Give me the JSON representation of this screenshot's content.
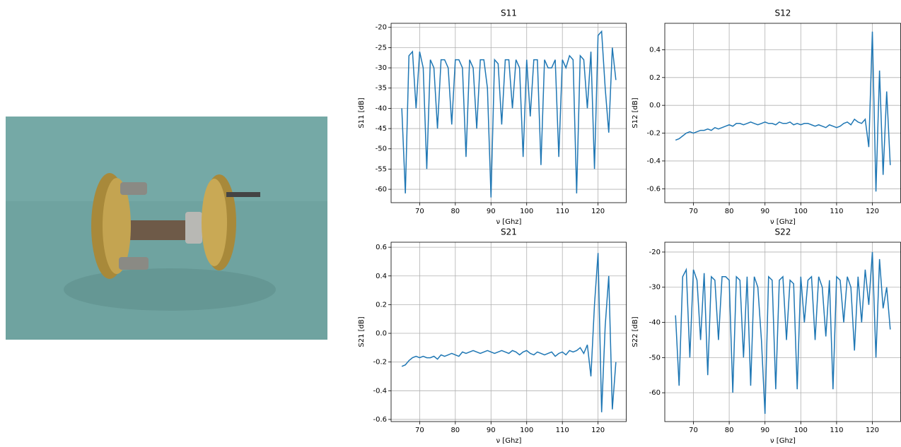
{
  "chart_data": [
    {
      "type": "line",
      "title": "S11",
      "x_label": "ν [Ghz]",
      "y_label": "S11 [dB]",
      "grid": true,
      "xlim": [
        62,
        128
      ],
      "xticks": [
        70,
        80,
        90,
        100,
        110,
        120
      ],
      "ylim": [
        -63.3,
        -19
      ],
      "yticks": [
        -60,
        -55,
        -50,
        -45,
        -40,
        -35,
        -30,
        -25,
        -20
      ],
      "x": [
        65,
        66,
        67,
        68,
        69,
        70,
        71,
        72,
        73,
        74,
        75,
        76,
        77,
        78,
        79,
        80,
        81,
        82,
        83,
        84,
        85,
        86,
        87,
        88,
        89,
        90,
        91,
        92,
        93,
        94,
        95,
        96,
        97,
        98,
        99,
        100,
        101,
        102,
        103,
        104,
        105,
        106,
        107,
        108,
        109,
        110,
        111,
        112,
        113,
        114,
        115,
        116,
        117,
        118,
        119,
        120,
        121,
        122,
        123,
        124,
        125
      ],
      "series": [
        {
          "name": "S11",
          "color": "#1f77b4",
          "values": [
            -40,
            -61,
            -27,
            -26,
            -40,
            -26,
            -30,
            -55,
            -28,
            -30,
            -45,
            -28,
            -28,
            -30,
            -44,
            -28,
            -28,
            -30,
            -52,
            -28,
            -30,
            -45,
            -28,
            -28,
            -35,
            -62,
            -28,
            -29,
            -44,
            -28,
            -28,
            -40,
            -28,
            -30,
            -52,
            -28,
            -42,
            -28,
            -28,
            -54,
            -28,
            -30,
            -30,
            -28,
            -52,
            -28,
            -30,
            -27,
            -28,
            -61,
            -27,
            -28,
            -40,
            -26,
            -55,
            -22,
            -21,
            -35,
            -46,
            -25,
            -33
          ]
        }
      ]
    },
    {
      "type": "line",
      "title": "S12",
      "x_label": "ν [Ghz]",
      "y_label": "S12 [dB]",
      "grid": true,
      "xlim": [
        62,
        128
      ],
      "xticks": [
        70,
        80,
        90,
        100,
        110,
        120
      ],
      "ylim": [
        -0.7,
        0.59
      ],
      "yticks": [
        -0.6,
        -0.4,
        -0.2,
        {
          "value": 0,
          "label": "0.0"
        },
        0.2,
        0.4
      ],
      "x": [
        65,
        66,
        67,
        68,
        69,
        70,
        71,
        72,
        73,
        74,
        75,
        76,
        77,
        78,
        79,
        80,
        81,
        82,
        83,
        84,
        85,
        86,
        87,
        88,
        89,
        90,
        91,
        92,
        93,
        94,
        95,
        96,
        97,
        98,
        99,
        100,
        101,
        102,
        103,
        104,
        105,
        106,
        107,
        108,
        109,
        110,
        111,
        112,
        113,
        114,
        115,
        116,
        117,
        118,
        119,
        120,
        121,
        122,
        123,
        124,
        125
      ],
      "series": [
        {
          "name": "S12",
          "color": "#1f77b4",
          "values": [
            -0.25,
            -0.24,
            -0.22,
            -0.2,
            -0.19,
            -0.2,
            -0.19,
            -0.18,
            -0.18,
            -0.17,
            -0.18,
            -0.16,
            -0.17,
            -0.16,
            -0.15,
            -0.14,
            -0.15,
            -0.13,
            -0.13,
            -0.14,
            -0.13,
            -0.12,
            -0.13,
            -0.14,
            -0.13,
            -0.12,
            -0.13,
            -0.13,
            -0.14,
            -0.12,
            -0.13,
            -0.13,
            -0.12,
            -0.14,
            -0.13,
            -0.14,
            -0.13,
            -0.13,
            -0.14,
            -0.15,
            -0.14,
            -0.15,
            -0.16,
            -0.14,
            -0.15,
            -0.16,
            -0.15,
            -0.13,
            -0.12,
            -0.14,
            -0.1,
            -0.12,
            -0.13,
            -0.1,
            -0.3,
            0.53,
            -0.62,
            0.25,
            -0.5,
            0.1,
            -0.43
          ]
        }
      ]
    },
    {
      "type": "line",
      "title": "S21",
      "x_label": "ν [Ghz]",
      "y_label": "S21 [dB]",
      "grid": true,
      "xlim": [
        62,
        128
      ],
      "xticks": [
        70,
        80,
        90,
        100,
        110,
        120
      ],
      "ylim": [
        -0.615,
        0.635
      ],
      "yticks": [
        -0.6,
        -0.4,
        -0.2,
        {
          "value": 0,
          "label": "0.0"
        },
        0.2,
        0.4,
        0.6
      ],
      "x": [
        65,
        66,
        67,
        68,
        69,
        70,
        71,
        72,
        73,
        74,
        75,
        76,
        77,
        78,
        79,
        80,
        81,
        82,
        83,
        84,
        85,
        86,
        87,
        88,
        89,
        90,
        91,
        92,
        93,
        94,
        95,
        96,
        97,
        98,
        99,
        100,
        101,
        102,
        103,
        104,
        105,
        106,
        107,
        108,
        109,
        110,
        111,
        112,
        113,
        114,
        115,
        116,
        117,
        118,
        119,
        120,
        121,
        122,
        123,
        124,
        125
      ],
      "series": [
        {
          "name": "S21",
          "color": "#1f77b4",
          "values": [
            -0.23,
            -0.22,
            -0.19,
            -0.17,
            -0.16,
            -0.17,
            -0.16,
            -0.17,
            -0.17,
            -0.16,
            -0.18,
            -0.15,
            -0.16,
            -0.15,
            -0.14,
            -0.15,
            -0.16,
            -0.13,
            -0.14,
            -0.13,
            -0.12,
            -0.13,
            -0.14,
            -0.13,
            -0.12,
            -0.13,
            -0.14,
            -0.13,
            -0.12,
            -0.13,
            -0.14,
            -0.12,
            -0.13,
            -0.15,
            -0.13,
            -0.12,
            -0.14,
            -0.15,
            -0.13,
            -0.14,
            -0.15,
            -0.14,
            -0.13,
            -0.16,
            -0.14,
            -0.13,
            -0.15,
            -0.12,
            -0.13,
            -0.12,
            -0.1,
            -0.14,
            -0.08,
            -0.3,
            0.2,
            0.56,
            -0.55,
            0.05,
            0.4,
            -0.53,
            -0.2
          ]
        }
      ]
    },
    {
      "type": "line",
      "title": "S22",
      "x_label": "ν [Ghz]",
      "y_label": "S22 [dB]",
      "grid": true,
      "xlim": [
        62,
        128
      ],
      "xticks": [
        70,
        80,
        90,
        100,
        110,
        120
      ],
      "ylim": [
        -68.2,
        -17.2
      ],
      "yticks": [
        -60,
        -50,
        -40,
        -30,
        -20
      ],
      "x": [
        65,
        66,
        67,
        68,
        69,
        70,
        71,
        72,
        73,
        74,
        75,
        76,
        77,
        78,
        79,
        80,
        81,
        82,
        83,
        84,
        85,
        86,
        87,
        88,
        89,
        90,
        91,
        92,
        93,
        94,
        95,
        96,
        97,
        98,
        99,
        100,
        101,
        102,
        103,
        104,
        105,
        106,
        107,
        108,
        109,
        110,
        111,
        112,
        113,
        114,
        115,
        116,
        117,
        118,
        119,
        120,
        121,
        122,
        123,
        124,
        125
      ],
      "series": [
        {
          "name": "S22",
          "color": "#1f77b4",
          "values": [
            -38,
            -58,
            -27,
            -25,
            -50,
            -25,
            -28,
            -45,
            -26,
            -55,
            -27,
            -28,
            -45,
            -27,
            -27,
            -28,
            -60,
            -27,
            -28,
            -50,
            -27,
            -58,
            -27,
            -30,
            -45,
            -66,
            -27,
            -28,
            -59,
            -28,
            -27,
            -45,
            -28,
            -29,
            -59,
            -27,
            -40,
            -28,
            -27,
            -45,
            -27,
            -30,
            -44,
            -28,
            -59,
            -27,
            -28,
            -40,
            -27,
            -30,
            -48,
            -27,
            -40,
            -25,
            -35,
            -20,
            -50,
            -22,
            -36,
            -30,
            -42
          ]
        }
      ]
    }
  ]
}
